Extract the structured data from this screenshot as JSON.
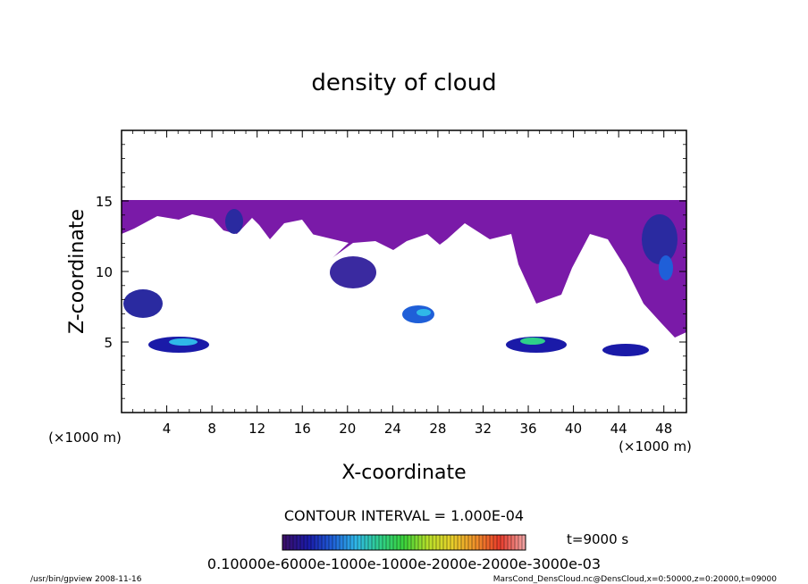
{
  "chart_data": {
    "type": "heatmap",
    "title": "density of cloud",
    "xlabel": "X-coordinate",
    "ylabel": "Z-coordinate",
    "x_unit": "(×1000 m)",
    "y_unit": "(×1000 m)",
    "xlim": [
      0,
      50
    ],
    "ylim": [
      0,
      20
    ],
    "xticks": [
      4,
      8,
      12,
      16,
      20,
      24,
      28,
      32,
      36,
      40,
      44,
      48
    ],
    "yticks": [
      5,
      10,
      15
    ],
    "contour_interval_text": "CONTOUR INTERVAL = 1.000E-04",
    "time_text": "t=9000 s",
    "colorbar_label_text": "0.10000e-6000e-1000e-1000e-2000e-2000e-3000e-03",
    "colorbar_colors": [
      "#3a0f6a",
      "#1a1aa8",
      "#1f5fd8",
      "#2fb8e8",
      "#2fd08a",
      "#3ad23a",
      "#b8e02a",
      "#e8d02a",
      "#f0902a",
      "#e83a2a",
      "#f0a0a0"
    ],
    "field_color": "#7a1aa8",
    "footer_left": "/usr/bin/gpview   2008-11-16",
    "footer_right": "MarsCond_DensCloud.nc@DensCloud,x=0:50000,z=0:20000,t=09000"
  }
}
